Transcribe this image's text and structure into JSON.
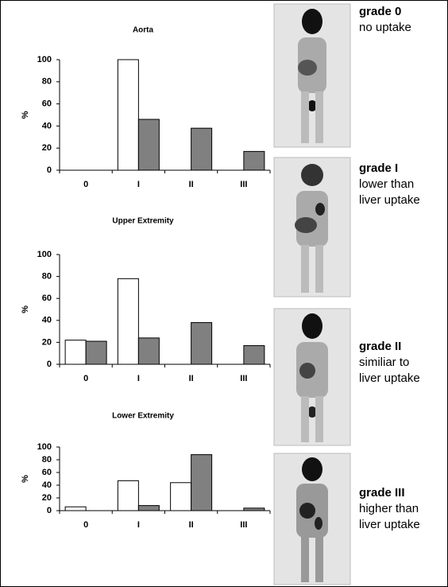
{
  "chart_data": [
    {
      "type": "bar",
      "title": "Aorta",
      "y_label": "%",
      "categories": [
        "0",
        "I",
        "II",
        "III"
      ],
      "series": [
        {
          "color": "#ffffff",
          "values": [
            0,
            100,
            0,
            0
          ]
        },
        {
          "color": "#808080",
          "values": [
            0,
            46,
            38,
            17
          ]
        }
      ],
      "ylim": [
        0,
        100
      ],
      "yticks": [
        0,
        20,
        40,
        60,
        80,
        100
      ]
    },
    {
      "type": "bar",
      "title": "Upper Extremity",
      "y_label": "%",
      "categories": [
        "0",
        "I",
        "II",
        "III"
      ],
      "series": [
        {
          "color": "#ffffff",
          "values": [
            22,
            78,
            0,
            0
          ]
        },
        {
          "color": "#808080",
          "values": [
            21,
            24,
            38,
            17
          ]
        }
      ],
      "ylim": [
        0,
        100
      ],
      "yticks": [
        0,
        20,
        40,
        60,
        80,
        100
      ]
    },
    {
      "type": "bar",
      "title": "Lower Extremity",
      "y_label": "%",
      "categories": [
        "0",
        "I",
        "II",
        "III"
      ],
      "series": [
        {
          "color": "#ffffff",
          "values": [
            6,
            47,
            44,
            0
          ]
        },
        {
          "color": "#808080",
          "values": [
            0,
            8,
            88,
            4
          ]
        }
      ],
      "ylim": [
        0,
        100
      ],
      "yticks": [
        0,
        20,
        40,
        60,
        80,
        100
      ]
    }
  ],
  "grades": [
    {
      "title": "grade 0",
      "lines": [
        "no uptake"
      ]
    },
    {
      "title": "grade I",
      "lines": [
        "lower than",
        "liver uptake"
      ]
    },
    {
      "title": "grade II",
      "lines": [
        "similiar to",
        "liver uptake"
      ]
    },
    {
      "title": "grade III",
      "lines": [
        "higher than",
        "liver uptake"
      ]
    }
  ]
}
